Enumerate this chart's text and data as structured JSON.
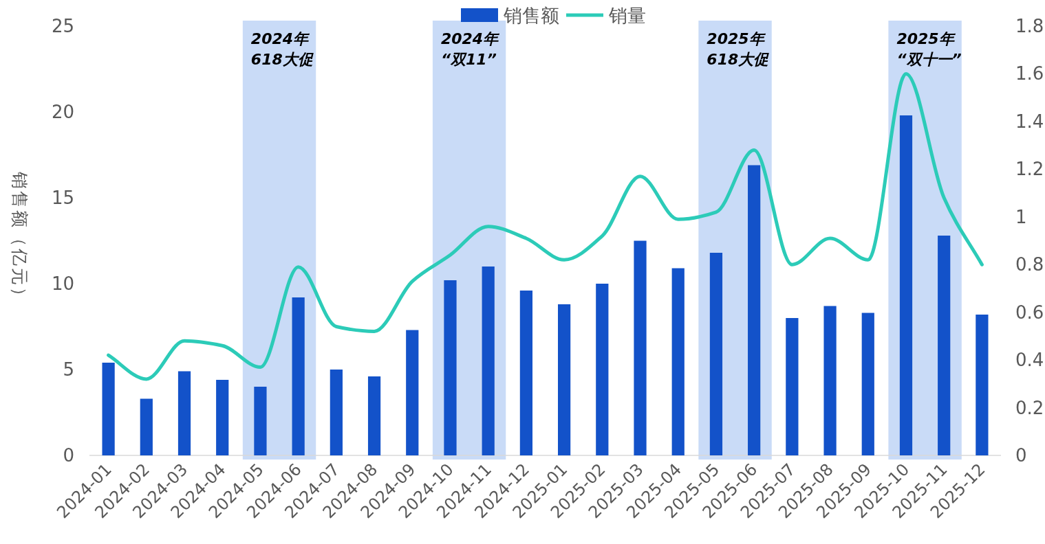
{
  "chart_data": {
    "type": "bar",
    "ylabel": "销售额（亿元）",
    "categories": [
      "2024-01",
      "2024-02",
      "2024-03",
      "2024-04",
      "2024-05",
      "2024-06",
      "2024-07",
      "2024-08",
      "2024-09",
      "2024-10",
      "2024-11",
      "2024-12",
      "2025-01",
      "2025-02",
      "2025-03",
      "2025-04",
      "2025-05",
      "2025-06",
      "2025-07",
      "2025-08",
      "2025-09",
      "2025-10",
      "2025-11",
      "2025-12"
    ],
    "series": [
      {
        "name": "销售额",
        "color": "#1352c9",
        "values": [
          5.4,
          3.3,
          4.9,
          4.4,
          4.0,
          9.2,
          5.0,
          4.6,
          7.3,
          10.2,
          11.0,
          9.6,
          8.8,
          10.0,
          12.5,
          10.9,
          11.8,
          16.9,
          8.0,
          8.7,
          8.3,
          19.8,
          12.8,
          8.2
        ]
      },
      {
        "name": "销量",
        "type": "line",
        "axis": "y2",
        "color": "#2ccbb8",
        "values": [
          0.42,
          0.32,
          0.48,
          0.46,
          0.37,
          0.79,
          0.54,
          0.52,
          0.73,
          0.84,
          0.96,
          0.91,
          0.82,
          0.92,
          1.17,
          0.99,
          1.02,
          1.28,
          0.8,
          0.91,
          0.82,
          1.6,
          1.08,
          0.8
        ]
      }
    ],
    "ylim": [
      0,
      25
    ],
    "yticks": [
      0,
      5,
      10,
      15,
      20,
      25
    ],
    "y2lim": [
      0,
      1.8
    ],
    "y2ticks": [
      0,
      0.2,
      0.4,
      0.6,
      0.8,
      1,
      1.2,
      1.4,
      1.6,
      1.8
    ],
    "bands": [
      {
        "axis": "x",
        "from": "2024-05",
        "to": "2024-06",
        "label": "2024年\n618大促",
        "color": "#c9dbf7"
      },
      {
        "axis": "x",
        "from": "2024-10",
        "to": "2024-11",
        "label": "2024年\n“双11”",
        "color": "#c9dbf7"
      },
      {
        "axis": "x",
        "from": "2025-05",
        "to": "2025-06",
        "label": "2025年\n618大促",
        "color": "#c9dbf7"
      },
      {
        "axis": "x",
        "from": "2025-10",
        "to": "2025-11",
        "label": "2025年\n“双十一”",
        "color": "#c9dbf7"
      }
    ],
    "grid": false,
    "legend": "top",
    "line_style": "solid",
    "marker": "none"
  }
}
